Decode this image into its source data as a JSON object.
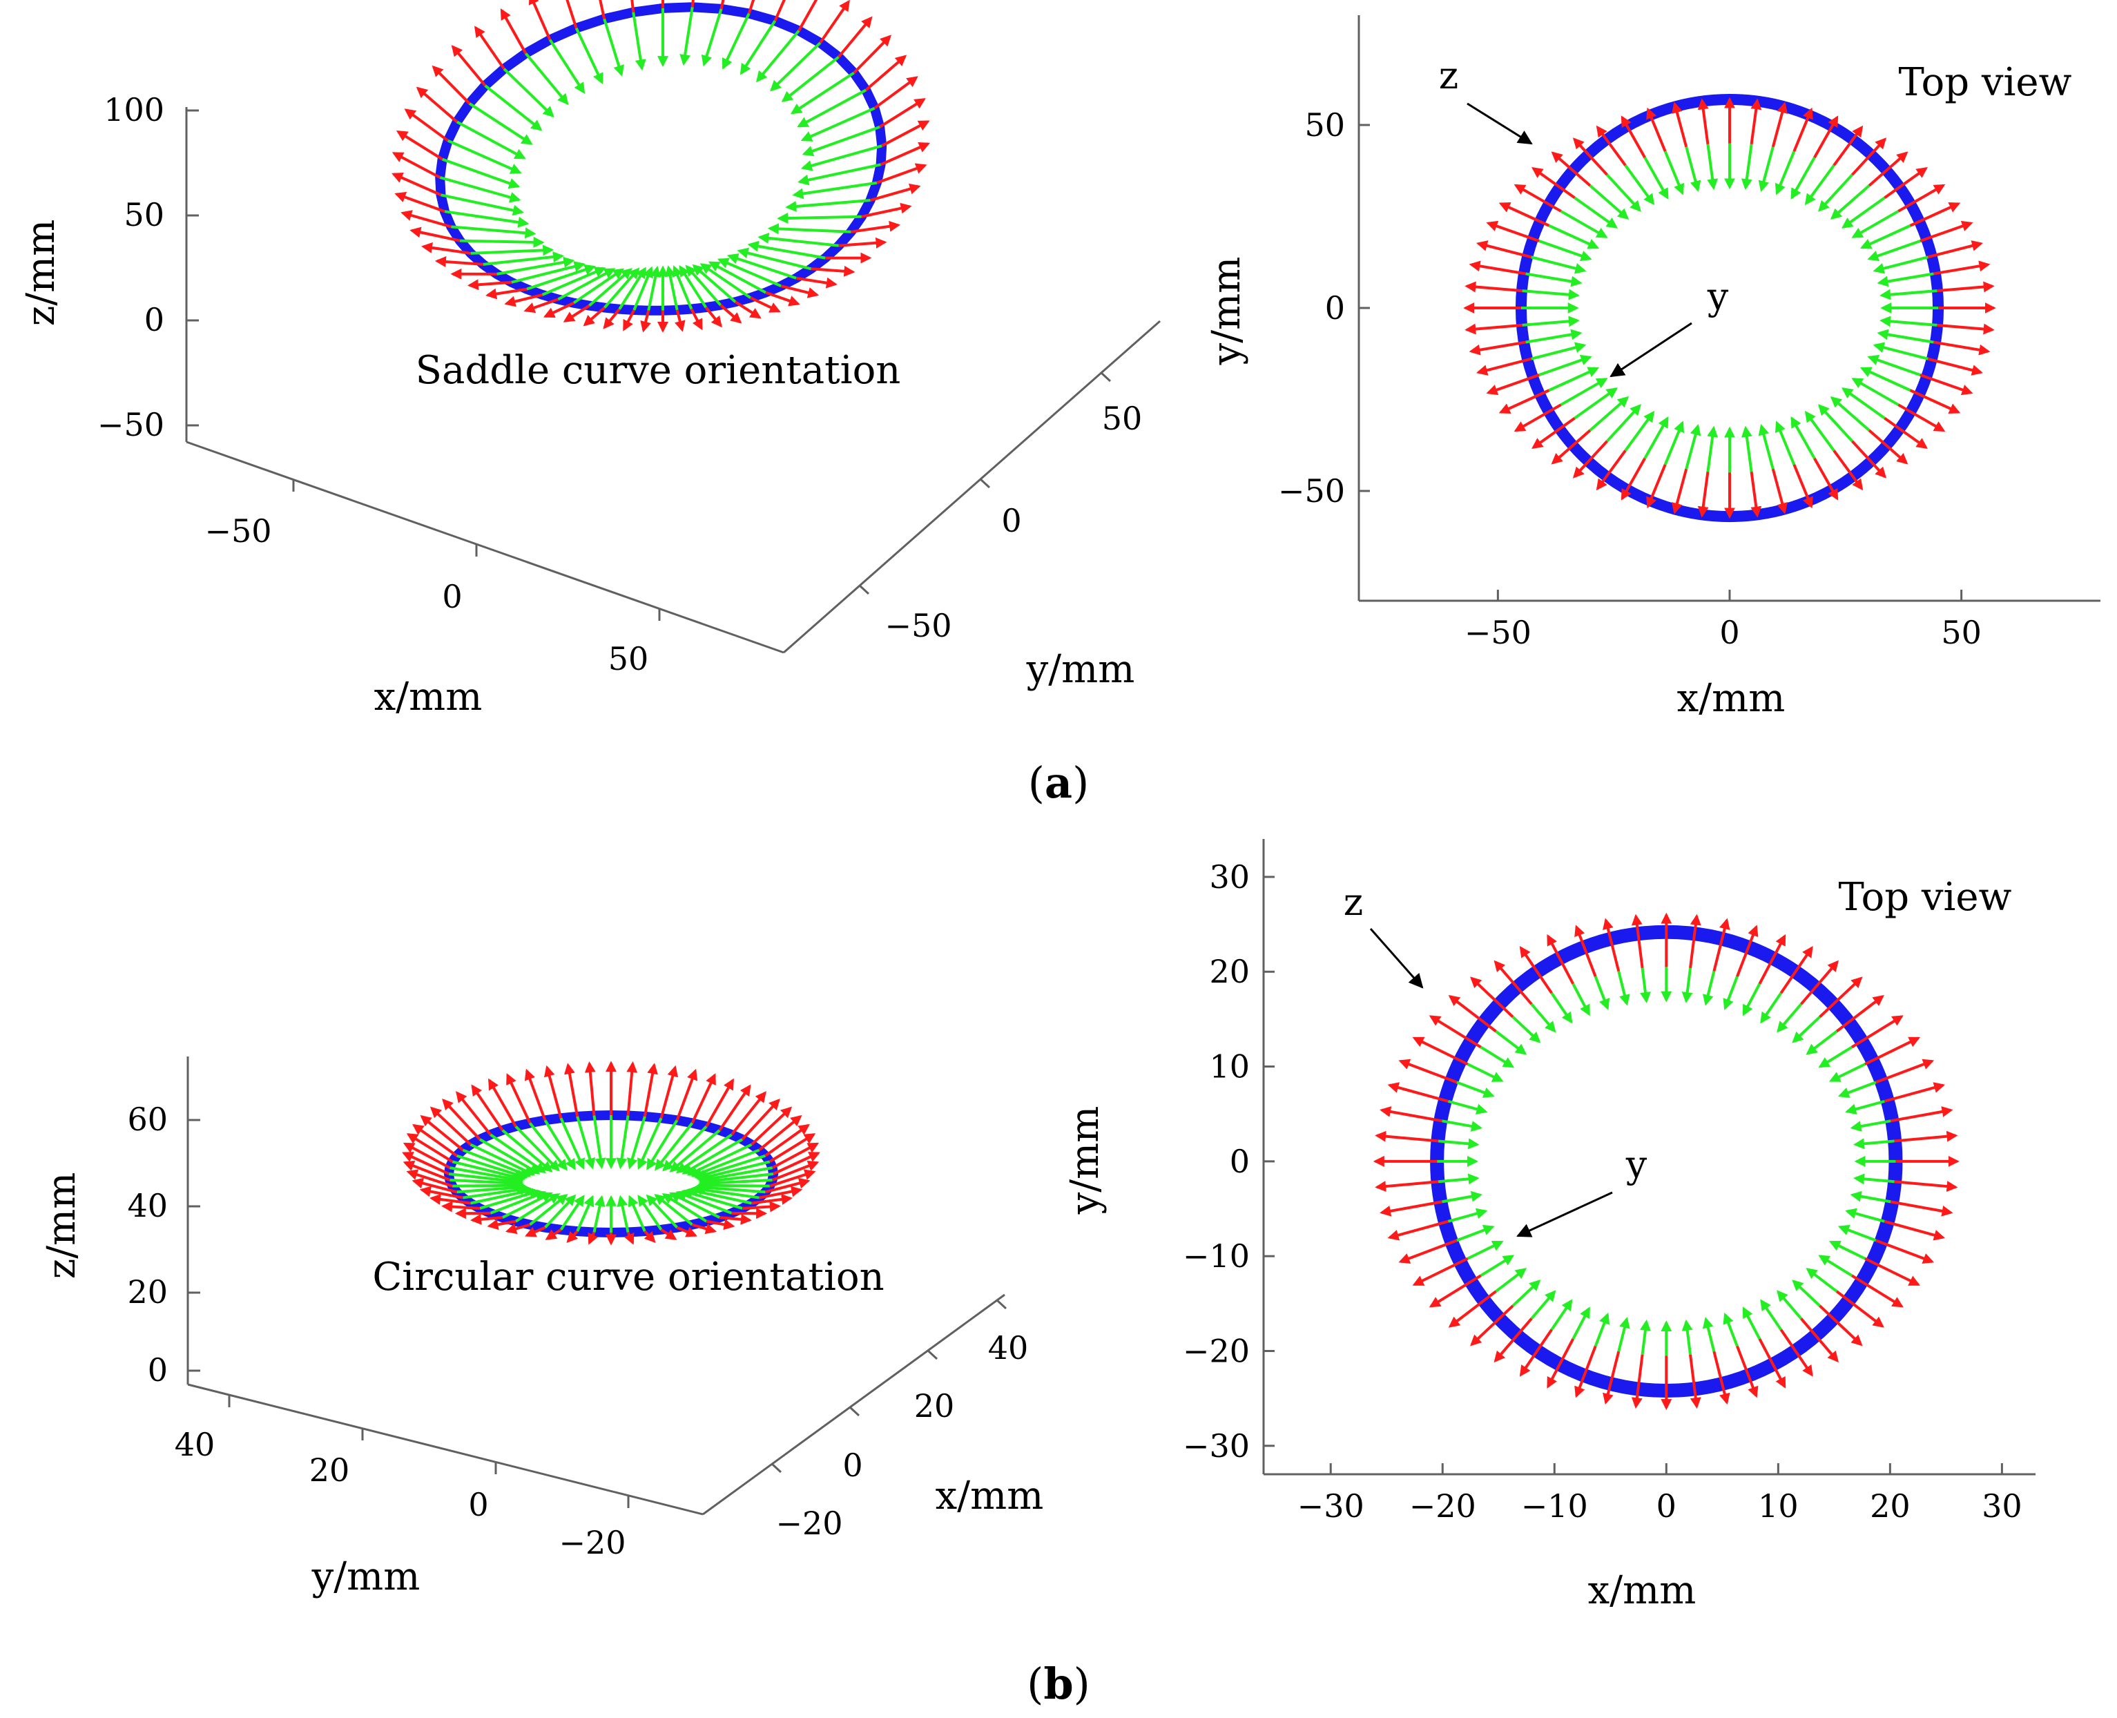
{
  "chart_data": [
    {
      "type": "3d-vector-field",
      "panel": "a-3d",
      "title": "Saddle curve orientation",
      "xlabel": "x/mm",
      "ylabel": "y/mm",
      "zlabel": "z/mm",
      "xticks": [
        "−50",
        "0",
        "50"
      ],
      "yticks": [
        "−50",
        "0",
        "50"
      ],
      "zticks": [
        "100",
        "50",
        "0",
        "−50"
      ],
      "curve": {
        "shape": "saddle",
        "radius": 45,
        "z_center": 60,
        "z_amplitude": 22
      },
      "arrows": {
        "count": 60,
        "z_axis_length": 12,
        "y_axis_length": 28
      }
    },
    {
      "type": "vector-field",
      "panel": "a-top",
      "title": "Top view",
      "xlabel": "x/mm",
      "ylabel": "y/mm",
      "xlim": [
        -80,
        80
      ],
      "ylim": [
        -80,
        80
      ],
      "xticks": [
        -50,
        0,
        50
      ],
      "yticks": [
        50,
        0,
        -50
      ],
      "curve": {
        "shape": "circle",
        "radius": 45
      },
      "arrows": {
        "count": 60,
        "z_axis_length": 12,
        "y_axis_length": 12
      },
      "annotations": [
        "z",
        "y"
      ]
    },
    {
      "type": "3d-vector-field",
      "panel": "b-3d",
      "title": "Circular curve orientation",
      "xlabel": "x/mm",
      "ylabel": "y/mm",
      "zlabel": "z/mm",
      "xticks": [
        "40",
        "20",
        "0",
        "−20"
      ],
      "yticks": [
        "−20",
        "0",
        "20",
        "40"
      ],
      "zticks": [
        "60",
        "40",
        "20",
        "0"
      ],
      "curve": {
        "shape": "circle",
        "radius": 20,
        "z": 50
      },
      "arrows": {
        "count": 60,
        "z_axis_length": 6,
        "y_axis_length": 10
      }
    },
    {
      "type": "vector-field",
      "panel": "b-top",
      "title": "Top view",
      "xlabel": "x/mm",
      "ylabel": "y/mm",
      "xlim": [
        -36,
        33
      ],
      "ylim": [
        -33,
        34
      ],
      "xticks": [
        -30,
        -20,
        -10,
        0,
        10,
        20,
        30
      ],
      "yticks": [
        30,
        20,
        10,
        0,
        -10,
        -20,
        -30
      ],
      "curve": {
        "shape": "circle",
        "radius": 20.5
      },
      "arrows": {
        "count": 60,
        "z_axis_length": 5.5,
        "y_axis_length": 3.5
      },
      "annotations": [
        "z",
        "y"
      ]
    }
  ],
  "panels": {
    "a": {
      "letter": "a",
      "open": "(",
      "close": ")"
    },
    "b": {
      "letter": "b",
      "open": "(",
      "close": ")"
    }
  },
  "annotations": {
    "z": "z",
    "y": "y"
  },
  "colors": {
    "z_axis": "#ff1a1a",
    "y_axis": "#22ee22",
    "curve": "#1a1aee",
    "axes": "#606060"
  }
}
